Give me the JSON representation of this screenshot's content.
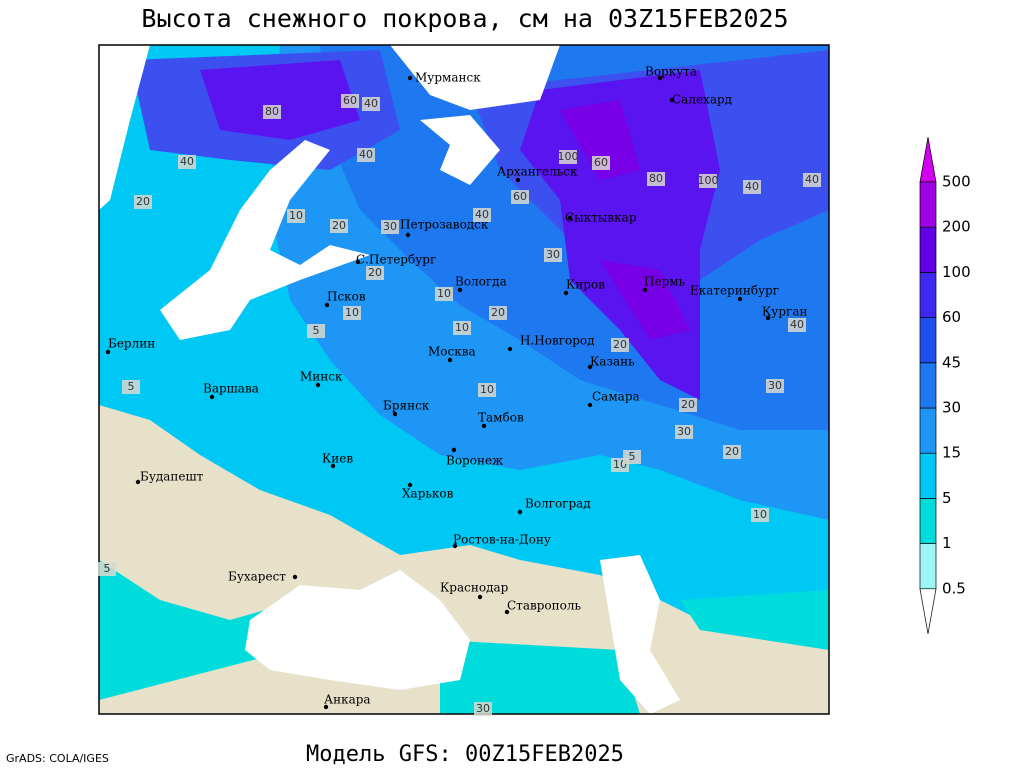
{
  "header": {
    "title": "Высота снежного покрова, см на 03Z15FEB2025",
    "model": "Модель GFS: 00Z15FEB2025"
  },
  "credit": "GrADS: COLA/IGES",
  "legend": {
    "levels": [
      0.5,
      1,
      5,
      15,
      30,
      45,
      60,
      100,
      200,
      500
    ],
    "colors": [
      "#ffffff",
      "#9ef5f5",
      "#00dcdc",
      "#00c8f5",
      "#1e96f5",
      "#1e78f0",
      "#1e50f0",
      "#3c28f0",
      "#6400e6",
      "#a000e6",
      "#d200f0"
    ]
  },
  "cities": [
    "Мурманск",
    "Воркута",
    "Салехард",
    "Архангельск",
    "Сыктывкар",
    "Петрозаводск",
    "С.Петербург",
    "Вологда",
    "Киров",
    "Пермь",
    "Екатеринбург",
    "Курган",
    "Псков",
    "Н.Новгород",
    "Казань",
    "Москва",
    "Минск",
    "Берлин",
    "Варшава",
    "Брянск",
    "Тамбов",
    "Самара",
    "Киев",
    "Воронеж",
    "Будапешт",
    "Харьков",
    "Волгоград",
    "Ростов-на-Дону",
    "Бухарест",
    "Краснодар",
    "Ставрополь",
    "Анкара"
  ],
  "contour_labels": [
    80,
    60,
    40,
    40,
    40,
    20,
    10,
    20,
    30,
    40,
    60,
    100,
    60,
    80,
    100,
    40,
    40,
    20,
    10,
    5,
    10,
    10,
    20,
    30,
    30,
    20,
    20,
    10,
    5,
    10,
    5,
    10,
    30,
    20,
    5,
    40,
    30
  ]
}
